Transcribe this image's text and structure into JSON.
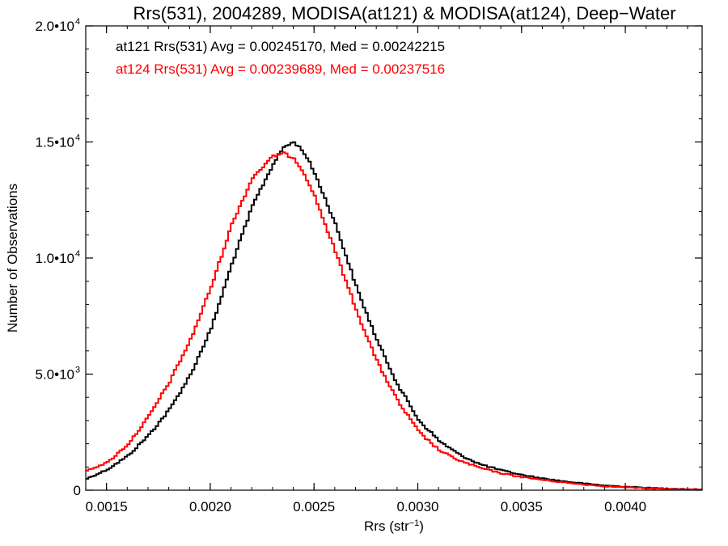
{
  "chart_data": {
    "type": "line",
    "title": "Rrs(531), 2004289, MODISA(at121) & MODISA(at124), Deep−Water",
    "xlabel": "Rrs (str",
    "xlabel_sup": "−1",
    "xlabel_close": ")",
    "ylabel": "Number of Observations",
    "xlim": [
      0.0014,
      0.00437
    ],
    "ylim": [
      0,
      20000
    ],
    "x_ticks": [
      {
        "value": 0.0015,
        "label": "0.0015"
      },
      {
        "value": 0.002,
        "label": "0.0020"
      },
      {
        "value": 0.0025,
        "label": "0.0025"
      },
      {
        "value": 0.003,
        "label": "0.0030"
      },
      {
        "value": 0.0035,
        "label": "0.0035"
      },
      {
        "value": 0.004,
        "label": "0.0040"
      }
    ],
    "y_ticks": [
      {
        "value": 0,
        "label": "0",
        "exp": ""
      },
      {
        "value": 5000,
        "label": "5.0•10",
        "exp": "3"
      },
      {
        "value": 10000,
        "label": "1.0•10",
        "exp": "4"
      },
      {
        "value": 15000,
        "label": "1.5•10",
        "exp": "4"
      },
      {
        "value": 20000,
        "label": "2.0•10",
        "exp": "4"
      }
    ],
    "grid": false,
    "step": true,
    "series": [
      {
        "name": "at121",
        "color": "#000000",
        "legend": "at121 Rrs(531) Avg = 0.00245170, Med = 0.00242215",
        "x": [
          0.0014,
          0.0015,
          0.0016,
          0.0017,
          0.0018,
          0.0019,
          0.002,
          0.0021,
          0.0022,
          0.0023,
          0.00235,
          0.0024,
          0.00245,
          0.0025,
          0.0026,
          0.0027,
          0.0028,
          0.0029,
          0.003,
          0.0031,
          0.0032,
          0.0033,
          0.0034,
          0.0035,
          0.0036,
          0.0037,
          0.0038,
          0.0039,
          0.004,
          0.0041,
          0.0042,
          0.0043,
          0.00437
        ],
        "y": [
          500,
          900,
          1500,
          2400,
          3500,
          5000,
          7000,
          9800,
          12300,
          14100,
          14800,
          15000,
          14500,
          13600,
          11400,
          8700,
          6400,
          4500,
          3000,
          2100,
          1500,
          1100,
          850,
          650,
          500,
          380,
          280,
          200,
          150,
          100,
          70,
          40,
          30
        ]
      },
      {
        "name": "at124",
        "color": "#ff0000",
        "legend": "at124 Rrs(531) Avg = 0.00239689, Med = 0.00237516",
        "x": [
          0.0014,
          0.0015,
          0.0016,
          0.0017,
          0.0018,
          0.0019,
          0.002,
          0.0021,
          0.0022,
          0.0023,
          0.00235,
          0.0024,
          0.00245,
          0.0025,
          0.0026,
          0.0027,
          0.0028,
          0.0029,
          0.003,
          0.0031,
          0.0032,
          0.0033,
          0.0034,
          0.0035,
          0.0036,
          0.0037,
          0.0038,
          0.0039,
          0.004,
          0.0041,
          0.0042,
          0.0043,
          0.00437
        ],
        "y": [
          850,
          1200,
          2000,
          3200,
          4700,
          6500,
          8800,
          11500,
          13500,
          14400,
          14500,
          14300,
          13600,
          12600,
          10200,
          7700,
          5500,
          3800,
          2500,
          1700,
          1250,
          950,
          720,
          560,
          440,
          330,
          240,
          170,
          120,
          80,
          50,
          30,
          20
        ]
      }
    ]
  }
}
